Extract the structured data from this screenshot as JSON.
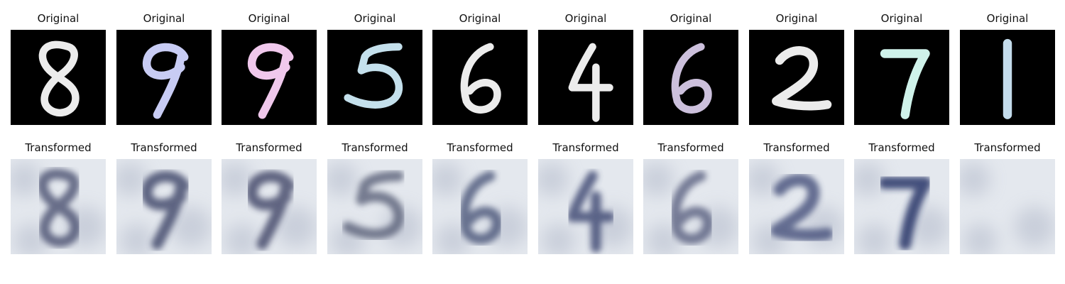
{
  "row_titles": {
    "original": "Original",
    "transformed": "Transformed"
  },
  "digits": [
    "8",
    "9",
    "9",
    "5",
    "6",
    "4",
    "6",
    "2",
    "7",
    "1"
  ],
  "original_colors": [
    "#ececec",
    "#c8ccf4",
    "#f0c8ec",
    "#c4e0ec",
    "#ececec",
    "#ececec",
    "#ccc0dc",
    "#ececec",
    "#cff2ea",
    "#c4dcec"
  ],
  "transformed_style": {
    "background": "#e4e8ee",
    "ink": [
      "#4a5070",
      "#3c4468",
      "#404466",
      "#5a6078",
      "#4a5478",
      "#3a4470",
      "#5a6080",
      "#44507a",
      "#1e2a60",
      "#1a2460"
    ]
  }
}
